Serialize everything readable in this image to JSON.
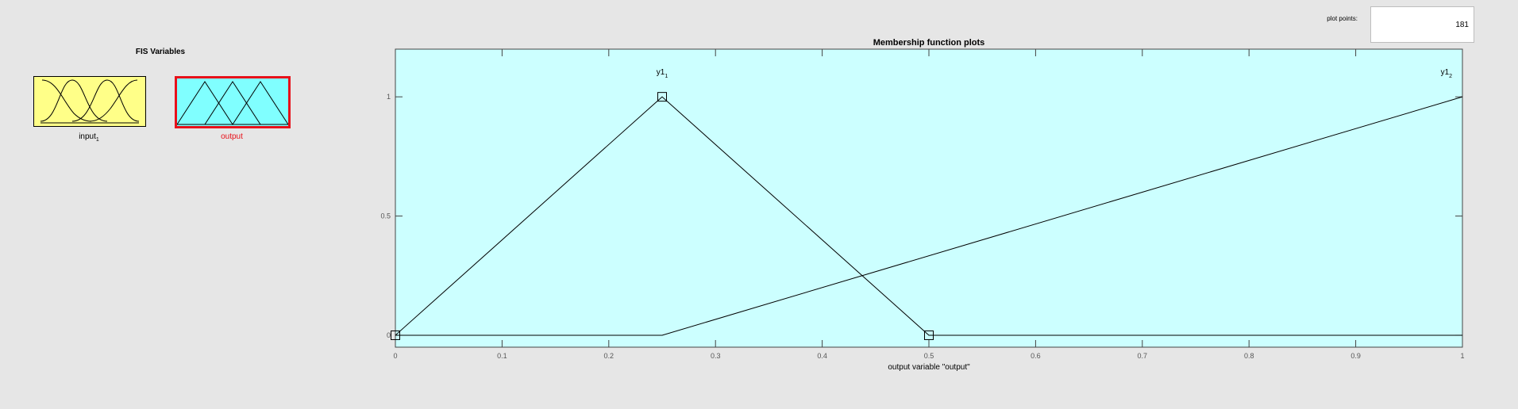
{
  "fis_variables": {
    "title": "FIS Variables",
    "input": {
      "label": "input",
      "sub": "1",
      "selected": false,
      "color": "#ffff88"
    },
    "output": {
      "label": "output",
      "selected": true,
      "color": "#80ffff",
      "highlight": "#e8111a"
    }
  },
  "plot_points": {
    "label": "plot points:",
    "value": "181"
  },
  "chart_data": {
    "type": "line",
    "title": "Membership function plots",
    "xlabel": "output variable \"output\"",
    "ylabel": "",
    "xlim": [
      0,
      1
    ],
    "ylim": [
      -0.05,
      1.2
    ],
    "xticks": [
      "0",
      "0.1",
      "0.2",
      "0.3",
      "0.4",
      "0.5",
      "0.6",
      "0.7",
      "0.8",
      "0.9",
      "1"
    ],
    "yticks": [
      "0",
      "0.5",
      "1"
    ],
    "background": "#ccffff",
    "series": [
      {
        "name": "y1",
        "sub": "1",
        "x": [
          0,
          0.25,
          0.5,
          1
        ],
        "y": [
          0,
          1,
          0,
          0
        ],
        "markers": true,
        "label_at": [
          0.25,
          1
        ]
      },
      {
        "name": "y1",
        "sub": "2",
        "x": [
          0,
          0.25,
          1
        ],
        "y": [
          0,
          0,
          1
        ],
        "markers": false,
        "label_at": [
          0.985,
          1
        ]
      }
    ]
  }
}
